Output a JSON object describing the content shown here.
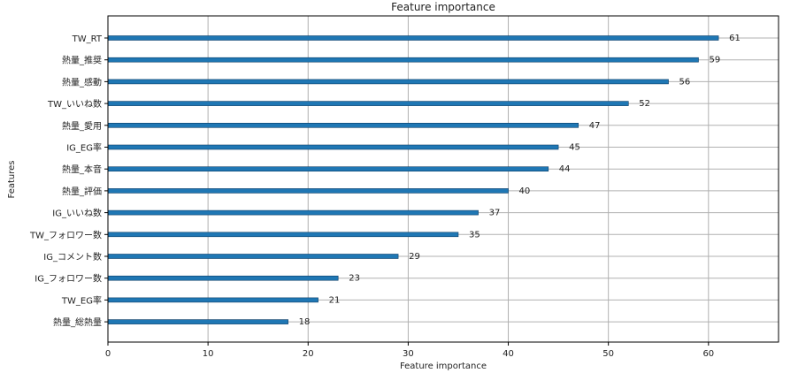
{
  "chart_data": {
    "type": "bar",
    "orientation": "horizontal",
    "title": "Feature importance",
    "xlabel": "Feature importance",
    "ylabel": "Features",
    "xlim": [
      0,
      67
    ],
    "xticks": [
      0,
      10,
      20,
      30,
      40,
      50,
      60
    ],
    "grid": true,
    "bar_color": "#1f77b4",
    "categories": [
      "TW_RT",
      "熱量_推奨",
      "熱量_感動",
      "TW_いいね数",
      "熱量_愛用",
      "IG_EG率",
      "熱量_本音",
      "熱量_評価",
      "IG_いいね数",
      "TW_フォロワー数",
      "IG_コメント数",
      "IG_フォロワー数",
      "TW_EG率",
      "熱量_総熱量"
    ],
    "values": [
      61,
      59,
      56,
      52,
      47,
      45,
      44,
      40,
      37,
      35,
      29,
      23,
      21,
      18
    ]
  }
}
